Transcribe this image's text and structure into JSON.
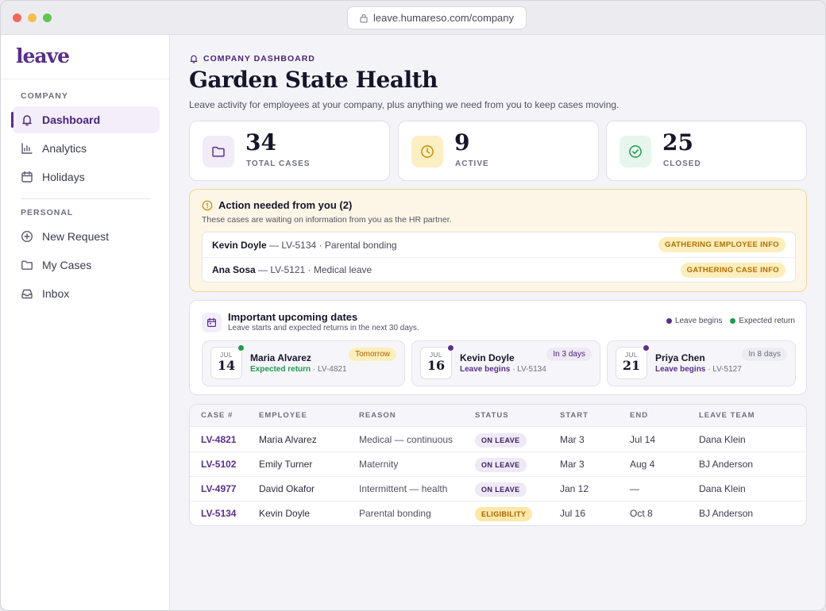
{
  "browser": {
    "url": "leave.humareso.com/company",
    "traffic_lights": [
      "#ed6a5e",
      "#f5bf4f",
      "#61c554"
    ]
  },
  "sidebar": {
    "logo": "leave",
    "sections": {
      "company": "COMPANY",
      "personal": "PERSONAL"
    },
    "company_items": [
      {
        "label": "Dashboard",
        "icon": "bell-icon",
        "active": true
      },
      {
        "label": "Analytics",
        "icon": "bar-chart-icon",
        "active": false
      },
      {
        "label": "Holidays",
        "icon": "calendar-icon",
        "active": false
      }
    ],
    "personal_items": [
      {
        "label": "New Request",
        "icon": "plus-circle-icon",
        "active": false
      },
      {
        "label": "My Cases",
        "icon": "folder-icon",
        "active": false
      },
      {
        "label": "Inbox",
        "icon": "inbox-icon",
        "active": false
      }
    ]
  },
  "header": {
    "eyebrow": "COMPANY DASHBOARD",
    "title": "Garden State Health",
    "subtitle": "Leave activity for employees at your company, plus anything we need from you to keep cases moving."
  },
  "stats": [
    {
      "value": "34",
      "label": "TOTAL CASES",
      "icon": "folder-icon",
      "color": "#5a2e8a"
    },
    {
      "value": "9",
      "label": "ACTIVE",
      "icon": "clock-icon",
      "color": "#c98a00"
    },
    {
      "value": "25",
      "label": "CLOSED",
      "icon": "check-circle-icon",
      "color": "#1f9a4e"
    }
  ],
  "action_needed": {
    "title": "Action needed from you (2)",
    "subtitle": "These cases are waiting on information from you as the HR partner.",
    "items": [
      {
        "name": "Kevin Doyle",
        "detail": " — LV-5134 · Parental bonding",
        "status": "GATHERING EMPLOYEE INFO"
      },
      {
        "name": "Ana Sosa",
        "detail": " — LV-5121 · Medical leave",
        "status": "GATHERING CASE INFO"
      }
    ]
  },
  "upcoming": {
    "title": "Important upcoming dates",
    "subtitle": "Leave starts and expected returns in the next 30 days.",
    "legend": [
      {
        "label": "Leave begins",
        "color": "#5a2e8a"
      },
      {
        "label": "Expected return",
        "color": "#1f9a4e"
      }
    ],
    "cards": [
      {
        "month": "JUL",
        "day": "14",
        "name": "Maria Alvarez",
        "event": "Expected return",
        "case": " · LV-4821",
        "pill": "Tomorrow",
        "dot_color": "#1f9a4e",
        "event_color": "#1f9a4e"
      },
      {
        "month": "JUL",
        "day": "16",
        "name": "Kevin Doyle",
        "event": "Leave begins",
        "case": " · LV-5134",
        "pill": "In 3 days",
        "dot_color": "#5a2e8a",
        "event_color": "#5a2e8a"
      },
      {
        "month": "JUL",
        "day": "21",
        "name": "Priya Chen",
        "event": "Leave begins",
        "case": " · LV-5127",
        "pill": "In 8 days",
        "dot_color": "#5a2e8a",
        "event_color": "#5a2e8a"
      }
    ]
  },
  "cases_table": {
    "columns": [
      "CASE #",
      "EMPLOYEE",
      "REASON",
      "STATUS",
      "START",
      "END",
      "LEAVE TEAM"
    ],
    "rows": [
      {
        "case": "LV-4821",
        "employee": "Maria Alvarez",
        "reason": "Medical — continuous",
        "status": "ON LEAVE",
        "start": "Mar 3",
        "end": "Jul 14",
        "team": "Dana Klein"
      },
      {
        "case": "LV-5102",
        "employee": "Emily Turner",
        "reason": "Maternity",
        "status": "ON LEAVE",
        "start": "Mar 3",
        "end": "Aug 4",
        "team": "BJ Anderson"
      },
      {
        "case": "LV-4977",
        "employee": "David Okafor",
        "reason": "Intermittent — health",
        "status": "ON LEAVE",
        "start": "Jan 12",
        "end": "—",
        "team": "Dana Klein"
      },
      {
        "case": "LV-5134",
        "employee": "Kevin Doyle",
        "reason": "Parental bonding",
        "status": "ELIGIBILITY",
        "start": "Jul 16",
        "end": "Oct 8",
        "team": "BJ Anderson"
      }
    ]
  }
}
